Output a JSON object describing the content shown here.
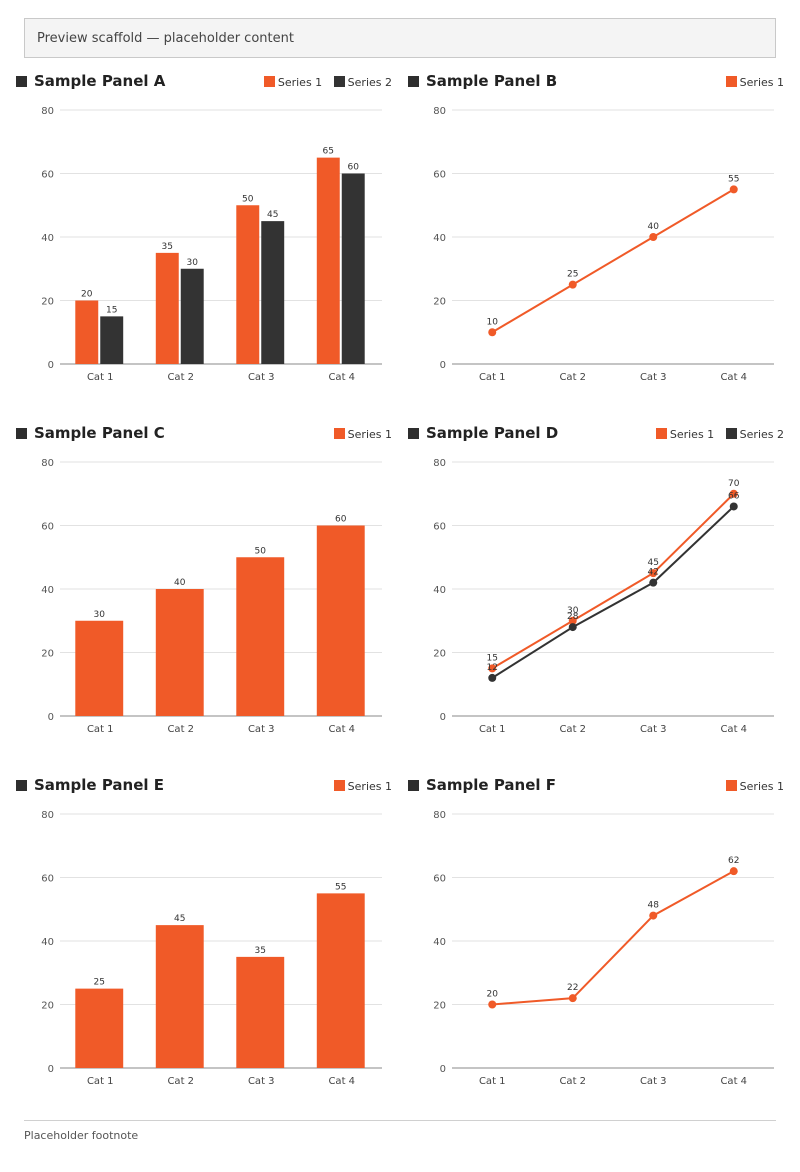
{
  "notice": "Preview scaffold — placeholder content",
  "footer": "Placeholder footnote",
  "chart_data": [
    {
      "type": "bar",
      "title": "Sample Panel A",
      "categories": [
        "Cat 1",
        "Cat 2",
        "Cat 3",
        "Cat 4"
      ],
      "series": [
        {
          "name": "Series 1",
          "color": "#f05a28",
          "values": [
            20,
            35,
            50,
            65
          ]
        },
        {
          "name": "Series 2",
          "color": "#333333",
          "values": [
            15,
            30,
            45,
            60
          ]
        }
      ],
      "ylim": [
        0,
        80
      ],
      "yticks": [
        "0",
        "20",
        "40",
        "60",
        "80"
      ],
      "xlabel": "",
      "ylabel": ""
    },
    {
      "type": "line",
      "title": "Sample Panel B",
      "categories": [
        "Cat 1",
        "Cat 2",
        "Cat 3",
        "Cat 4"
      ],
      "series": [
        {
          "name": "Series 1",
          "color": "#f05a28",
          "values": [
            10,
            25,
            40,
            55
          ]
        }
      ],
      "ylim": [
        0,
        80
      ],
      "yticks": [
        "0",
        "20",
        "40",
        "60",
        "80"
      ],
      "xlabel": "",
      "ylabel": ""
    },
    {
      "type": "bar",
      "title": "Sample Panel C",
      "categories": [
        "Cat 1",
        "Cat 2",
        "Cat 3",
        "Cat 4"
      ],
      "series": [
        {
          "name": "Series 1",
          "color": "#f05a28",
          "values": [
            30,
            40,
            50,
            60
          ]
        }
      ],
      "ylim": [
        0,
        80
      ],
      "yticks": [
        "0",
        "20",
        "40",
        "60",
        "80"
      ],
      "xlabel": "",
      "ylabel": ""
    },
    {
      "type": "line",
      "title": "Sample Panel D",
      "categories": [
        "Cat 1",
        "Cat 2",
        "Cat 3",
        "Cat 4"
      ],
      "series": [
        {
          "name": "Series 1",
          "color": "#f05a28",
          "values": [
            15,
            30,
            45,
            70
          ]
        },
        {
          "name": "Series 2",
          "color": "#333333",
          "values": [
            12,
            28,
            42,
            66
          ]
        }
      ],
      "ylim": [
        0,
        80
      ],
      "yticks": [
        "0",
        "20",
        "40",
        "60",
        "80"
      ],
      "xlabel": "",
      "ylabel": ""
    },
    {
      "type": "bar",
      "title": "Sample Panel E",
      "categories": [
        "Cat 1",
        "Cat 2",
        "Cat 3",
        "Cat 4"
      ],
      "series": [
        {
          "name": "Series 1",
          "color": "#f05a28",
          "values": [
            25,
            45,
            35,
            55
          ]
        }
      ],
      "ylim": [
        0,
        80
      ],
      "yticks": [
        "0",
        "20",
        "40",
        "60",
        "80"
      ],
      "xlabel": "",
      "ylabel": ""
    },
    {
      "type": "line",
      "title": "Sample Panel F",
      "categories": [
        "Cat 1",
        "Cat 2",
        "Cat 3",
        "Cat 4"
      ],
      "series": [
        {
          "name": "Series 1",
          "color": "#f05a28",
          "values": [
            20,
            22,
            48,
            62
          ]
        }
      ],
      "ylim": [
        0,
        80
      ],
      "yticks": [
        "0",
        "20",
        "40",
        "60",
        "80"
      ],
      "xlabel": "",
      "ylabel": ""
    }
  ]
}
